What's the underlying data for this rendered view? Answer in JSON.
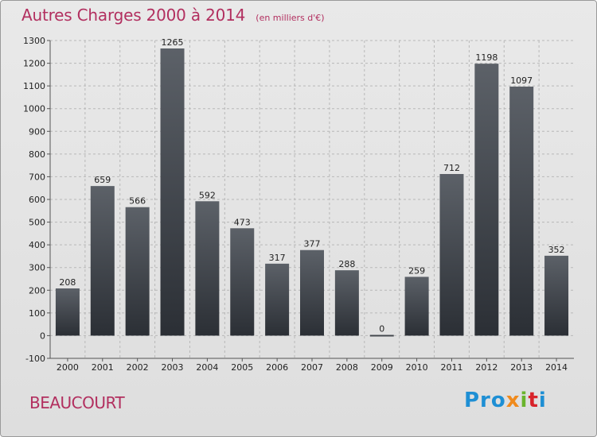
{
  "chart_data": {
    "type": "bar",
    "title": "Autres Charges 2000 à 2014",
    "subtitle": "(en milliers d'€)",
    "categories": [
      "2000",
      "2001",
      "2002",
      "2003",
      "2004",
      "2005",
      "2006",
      "2007",
      "2008",
      "2009",
      "2010",
      "2011",
      "2012",
      "2013",
      "2014"
    ],
    "values": [
      208,
      659,
      566,
      1265,
      592,
      473,
      317,
      377,
      288,
      0,
      259,
      712,
      1198,
      1097,
      352
    ],
    "ylim": [
      -100,
      1300
    ],
    "yticks": [
      -100,
      0,
      100,
      200,
      300,
      400,
      500,
      600,
      700,
      800,
      900,
      1000,
      1100,
      1200,
      1300
    ],
    "grid": true,
    "bar_color_top": "#5c6168",
    "bar_color_bottom": "#2b2f35",
    "grid_color": "#b8b8b8"
  },
  "footer": {
    "commune": "BEAUCOURT"
  },
  "logo": {
    "letters": [
      "Pro",
      "x",
      "i",
      "t",
      "i"
    ]
  }
}
